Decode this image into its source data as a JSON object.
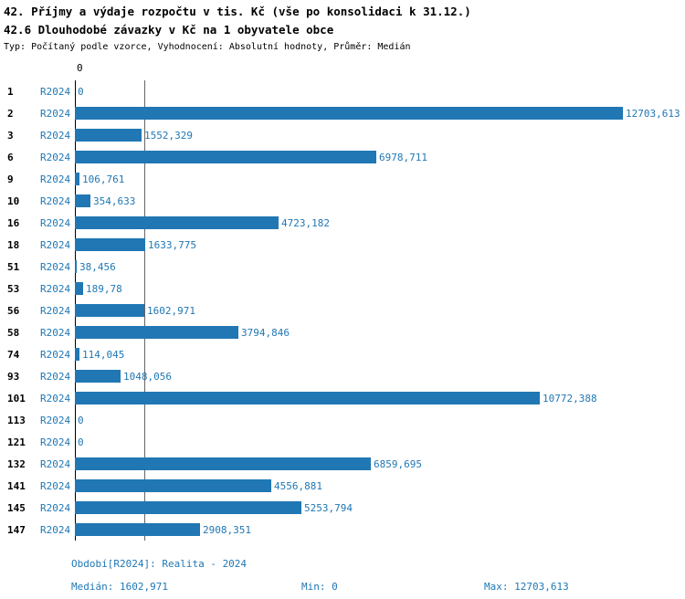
{
  "title_line1": "42. Příjmy a výdaje rozpočtu v tis. Kč (vše po konsolidaci k 31.12.)",
  "title_line2": "42.6 Dlouhodobé závazky v Kč na 1 obyvatele obce",
  "subtitle": "Typ: Počítaný podle vzorce, Vyhodnocení: Absolutní hodnoty, Průměr: Medián",
  "colors": {
    "bar": "#2077b4",
    "text_blue": "#1f77b4",
    "axis": "#000000",
    "median_line": "#666666"
  },
  "chart_data": {
    "type": "bar",
    "orientation": "horizontal",
    "series_label": "R2024",
    "categories": [
      "1",
      "2",
      "3",
      "6",
      "9",
      "10",
      "16",
      "18",
      "51",
      "53",
      "56",
      "58",
      "74",
      "93",
      "101",
      "113",
      "121",
      "132",
      "141",
      "145",
      "147"
    ],
    "values": [
      0,
      12703.613,
      1552.329,
      6978.711,
      106.761,
      354.633,
      4723.182,
      1633.775,
      38.456,
      189.78,
      1602.971,
      3794.846,
      114.045,
      1048.056,
      10772.388,
      0,
      0,
      6859.695,
      4556.881,
      5253.794,
      2908.351
    ],
    "value_labels": [
      "0",
      "12703,613",
      "1552,329",
      "6978,711",
      "106,761",
      "354,633",
      "4723,182",
      "1633,775",
      "38,456",
      "189,78",
      "1602,971",
      "3794,846",
      "114,045",
      "1048,056",
      "10772,388",
      "0",
      "0",
      "6859,695",
      "4556,881",
      "5253,794",
      "2908,351"
    ],
    "xlim": [
      0,
      12703.613
    ],
    "x_tick_labels": [
      "0"
    ],
    "grid": "median-line-only",
    "legend_position": "none",
    "median": 1602.971,
    "median_label": "1602,971"
  },
  "footer": {
    "period": "Období[R2024]: Realita - 2024",
    "median": "Medián: 1602,971",
    "min": "Min: 0",
    "max": "Max: 12703,613"
  }
}
